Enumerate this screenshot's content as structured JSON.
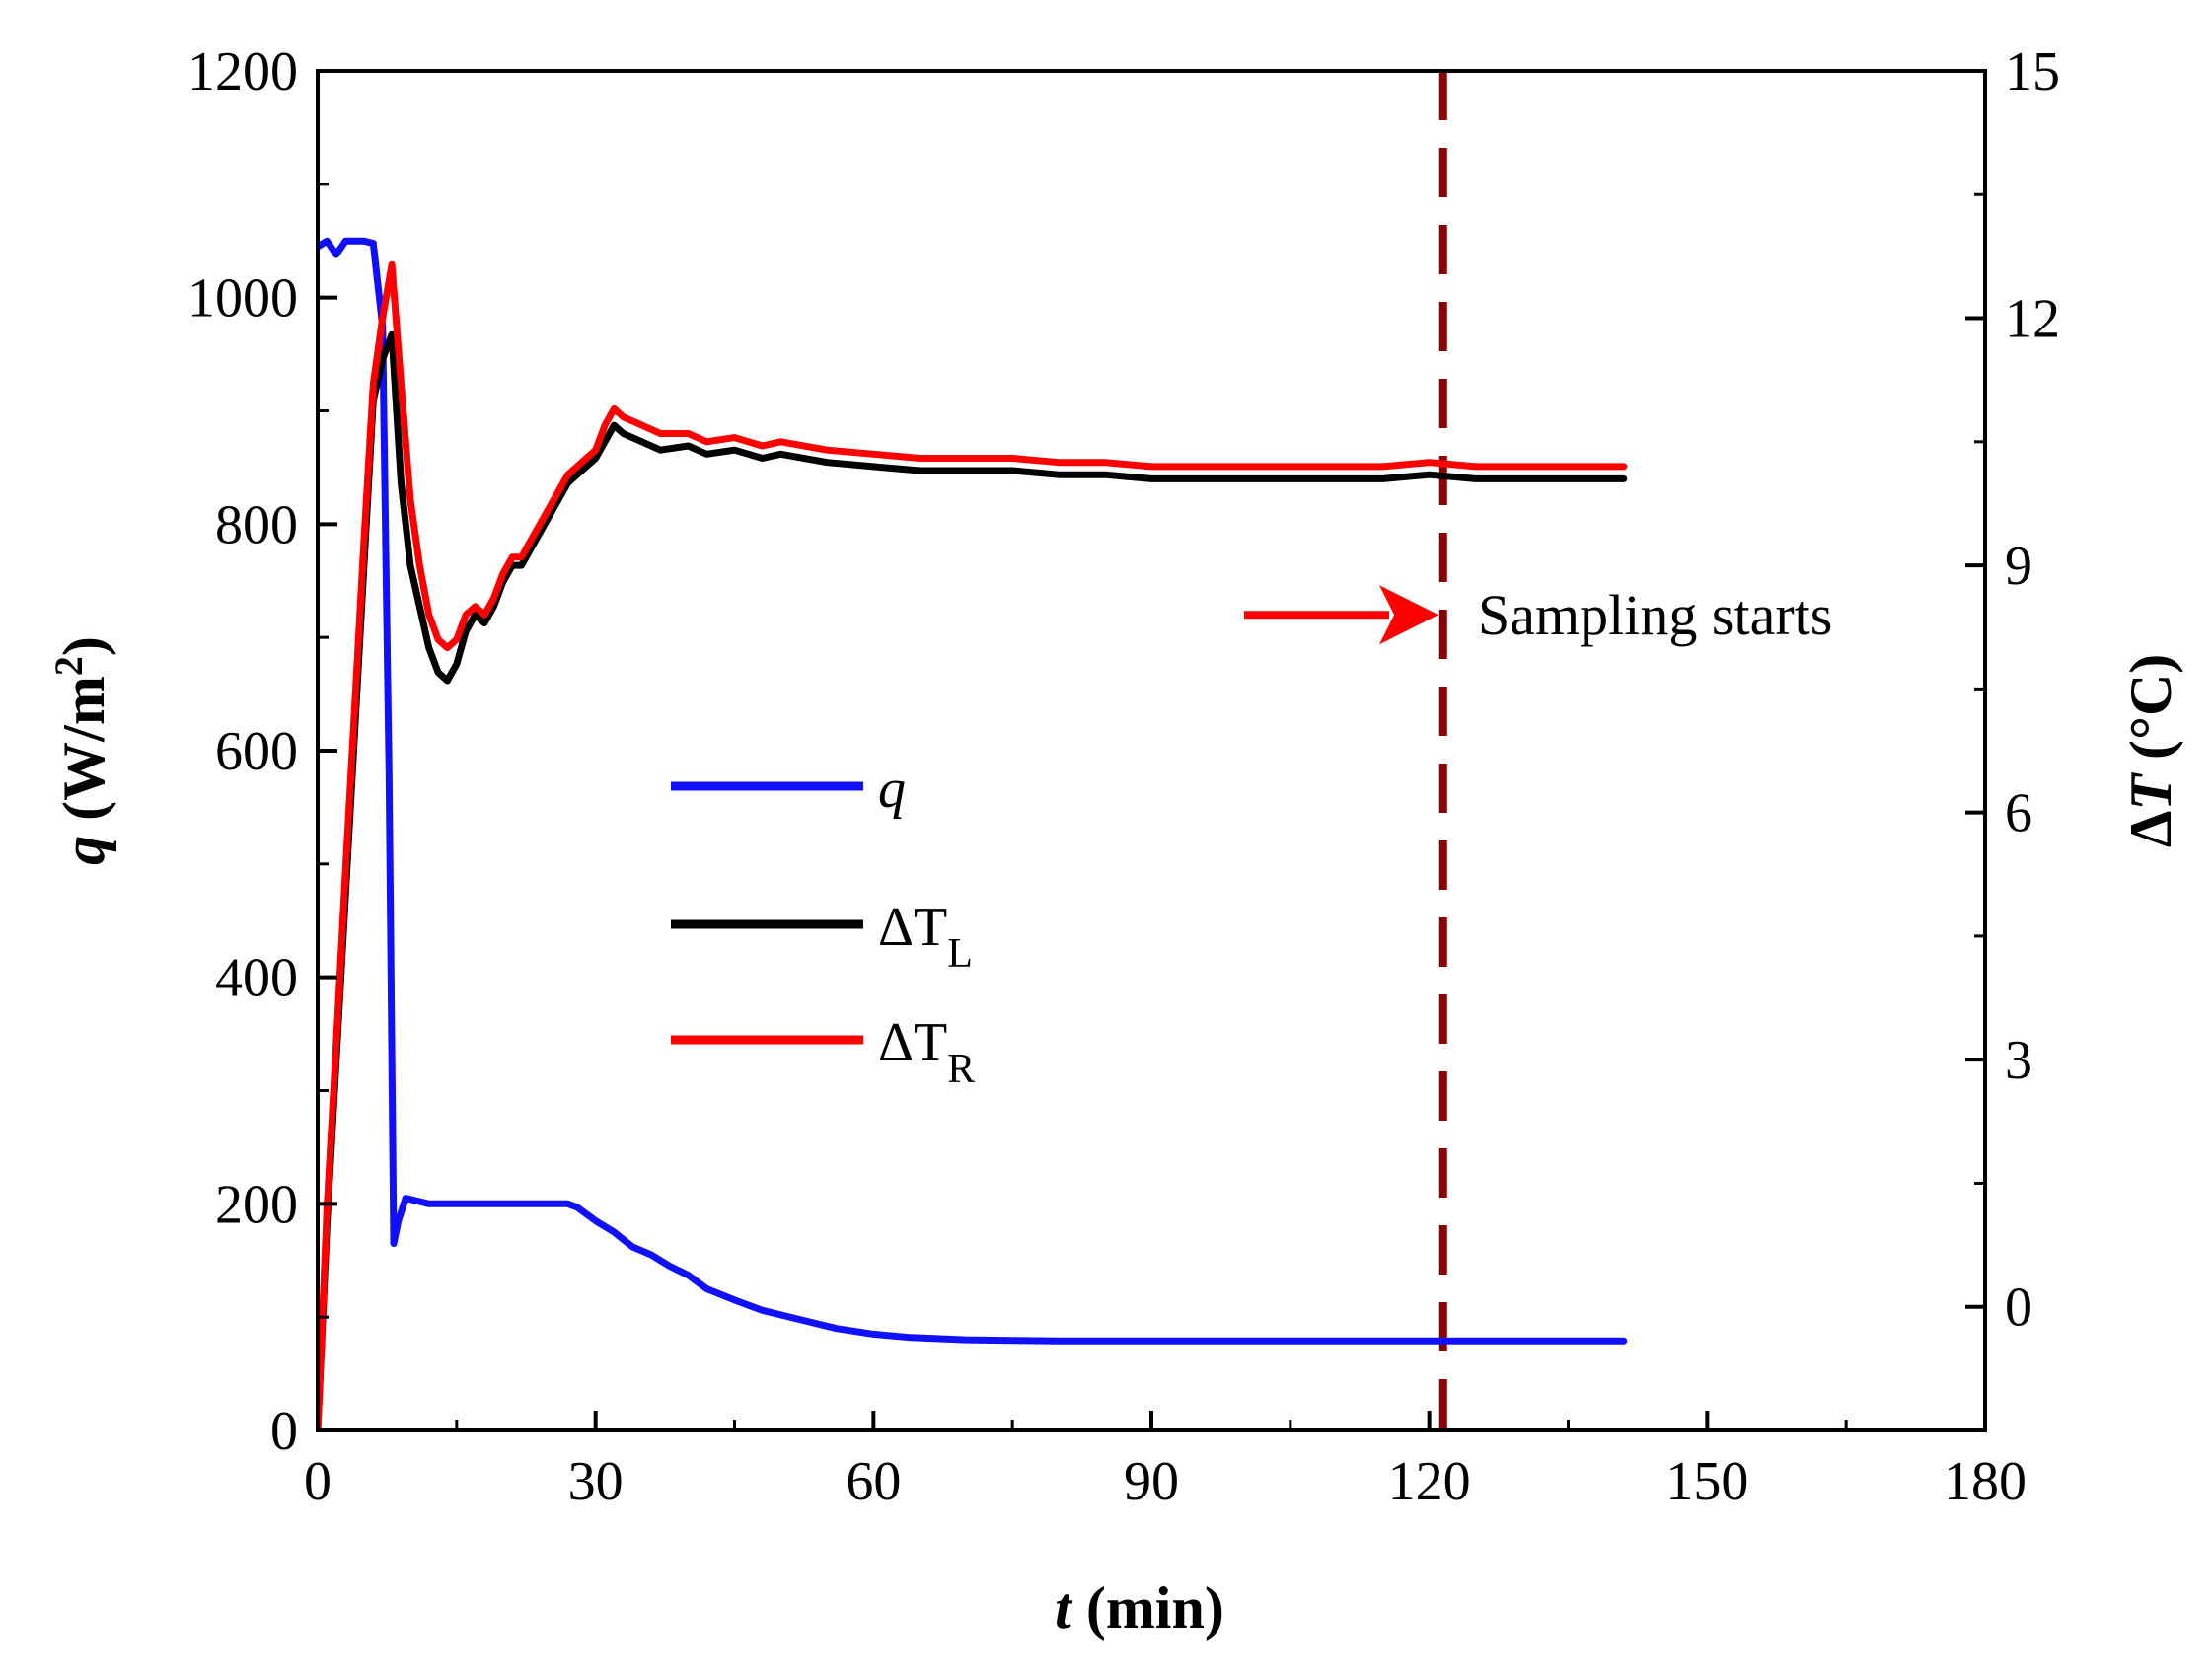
{
  "chart_data": {
    "type": "line",
    "title": "",
    "xlabel": {
      "var": "t",
      "unit": " (min)"
    },
    "ylabel_left": {
      "var": "q",
      "unit_pre": " (W/m",
      "unit_sup": "2",
      "unit_post": ")"
    },
    "ylabel_right": {
      "delta": "Δ",
      "var": "T",
      "unit": " (°C)"
    },
    "xlim": [
      0,
      180
    ],
    "ylim_left": [
      0,
      1200
    ],
    "ylim_right": [
      -1.5,
      15
    ],
    "x_ticks": [
      0,
      30,
      60,
      90,
      120,
      150,
      180
    ],
    "x_tick_labels": [
      "0",
      "30",
      "60",
      "90",
      "120",
      "150",
      "180"
    ],
    "y_left_ticks": [
      0,
      200,
      400,
      600,
      800,
      1000,
      1200
    ],
    "y_left_tick_labels": [
      "0",
      "200",
      "400",
      "600",
      "800",
      "1000",
      "1200"
    ],
    "y_right_ticks": [
      0,
      3,
      6,
      9,
      12,
      15
    ],
    "y_right_tick_labels": [
      "0",
      "3",
      "6",
      "9",
      "12",
      "15"
    ],
    "series": [
      {
        "name": "q",
        "axis": "left",
        "color": "#1010ff",
        "legend": {
          "base": "q",
          "sub": "",
          "italic_all": true
        },
        "points": [
          [
            0,
            1045
          ],
          [
            1,
            1050
          ],
          [
            2,
            1038
          ],
          [
            3,
            1050
          ],
          [
            4,
            1050
          ],
          [
            5,
            1050
          ],
          [
            6,
            1048
          ],
          [
            7,
            975
          ],
          [
            7.7,
            580
          ],
          [
            8.2,
            165
          ],
          [
            8.7,
            185
          ],
          [
            9.5,
            205
          ],
          [
            10.5,
            203
          ],
          [
            12,
            200
          ],
          [
            15,
            200
          ],
          [
            20,
            200
          ],
          [
            24,
            200
          ],
          [
            27,
            200
          ],
          [
            28,
            197
          ],
          [
            30,
            185
          ],
          [
            32,
            175
          ],
          [
            34,
            162
          ],
          [
            36,
            155
          ],
          [
            38,
            145
          ],
          [
            40,
            137
          ],
          [
            42,
            125
          ],
          [
            45,
            115
          ],
          [
            48,
            106
          ],
          [
            52,
            98
          ],
          [
            56,
            90
          ],
          [
            60,
            85
          ],
          [
            64,
            82
          ],
          [
            70,
            80
          ],
          [
            80,
            79
          ],
          [
            90,
            79
          ],
          [
            100,
            79
          ],
          [
            110,
            79
          ],
          [
            120,
            79
          ],
          [
            130,
            79
          ],
          [
            141,
            79
          ]
        ]
      },
      {
        "name": "ΔTL",
        "axis": "right",
        "color": "#000000",
        "legend": {
          "base": "ΔT",
          "sub": "L"
        },
        "points": [
          [
            0,
            -1.5
          ],
          [
            1,
            1
          ],
          [
            2,
            3
          ],
          [
            3,
            5
          ],
          [
            4,
            7
          ],
          [
            5,
            9
          ],
          [
            6,
            11
          ],
          [
            7,
            11.5
          ],
          [
            8,
            11.8
          ],
          [
            9,
            10
          ],
          [
            10,
            9
          ],
          [
            11,
            8.5
          ],
          [
            12,
            8
          ],
          [
            13,
            7.7
          ],
          [
            14,
            7.6
          ],
          [
            15,
            7.8
          ],
          [
            16,
            8.2
          ],
          [
            17,
            8.4
          ],
          [
            18,
            8.3
          ],
          [
            19,
            8.5
          ],
          [
            20,
            8.8
          ],
          [
            21,
            9
          ],
          [
            22,
            9
          ],
          [
            23,
            9.2
          ],
          [
            24,
            9.4
          ],
          [
            25,
            9.6
          ],
          [
            26,
            9.8
          ],
          [
            27,
            10
          ],
          [
            28,
            10.1
          ],
          [
            29,
            10.2
          ],
          [
            30,
            10.3
          ],
          [
            31,
            10.5
          ],
          [
            32,
            10.7
          ],
          [
            33,
            10.6
          ],
          [
            35,
            10.5
          ],
          [
            37,
            10.4
          ],
          [
            40,
            10.45
          ],
          [
            42,
            10.35
          ],
          [
            45,
            10.4
          ],
          [
            48,
            10.3
          ],
          [
            50,
            10.35
          ],
          [
            55,
            10.25
          ],
          [
            60,
            10.2
          ],
          [
            65,
            10.15
          ],
          [
            70,
            10.15
          ],
          [
            75,
            10.15
          ],
          [
            80,
            10.1
          ],
          [
            85,
            10.1
          ],
          [
            90,
            10.05
          ],
          [
            95,
            10.05
          ],
          [
            100,
            10.05
          ],
          [
            105,
            10.05
          ],
          [
            110,
            10.05
          ],
          [
            115,
            10.05
          ],
          [
            120,
            10.1
          ],
          [
            125,
            10.05
          ],
          [
            130,
            10.05
          ],
          [
            135,
            10.05
          ],
          [
            141,
            10.05
          ]
        ]
      },
      {
        "name": "ΔTR",
        "axis": "right",
        "color": "#ff0000",
        "legend": {
          "base": "ΔT",
          "sub": "R"
        },
        "points": [
          [
            0,
            -1.5
          ],
          [
            1,
            1.2
          ],
          [
            2,
            3.2
          ],
          [
            3,
            5.3
          ],
          [
            4,
            7.3
          ],
          [
            5,
            9.3
          ],
          [
            6,
            11.2
          ],
          [
            7,
            12
          ],
          [
            8,
            12.65
          ],
          [
            9,
            11.2
          ],
          [
            10,
            9.8
          ],
          [
            11,
            9
          ],
          [
            12,
            8.4
          ],
          [
            13,
            8.1
          ],
          [
            14,
            8
          ],
          [
            15,
            8.1
          ],
          [
            16,
            8.4
          ],
          [
            17,
            8.5
          ],
          [
            18,
            8.4
          ],
          [
            19,
            8.6
          ],
          [
            20,
            8.9
          ],
          [
            21,
            9.1
          ],
          [
            22,
            9.1
          ],
          [
            23,
            9.3
          ],
          [
            24,
            9.5
          ],
          [
            25,
            9.7
          ],
          [
            26,
            9.9
          ],
          [
            27,
            10.1
          ],
          [
            28,
            10.2
          ],
          [
            29,
            10.3
          ],
          [
            30,
            10.4
          ],
          [
            31,
            10.7
          ],
          [
            32,
            10.9
          ],
          [
            33,
            10.8
          ],
          [
            35,
            10.7
          ],
          [
            37,
            10.6
          ],
          [
            40,
            10.6
          ],
          [
            42,
            10.5
          ],
          [
            45,
            10.55
          ],
          [
            48,
            10.45
          ],
          [
            50,
            10.5
          ],
          [
            55,
            10.4
          ],
          [
            60,
            10.35
          ],
          [
            65,
            10.3
          ],
          [
            70,
            10.3
          ],
          [
            75,
            10.3
          ],
          [
            80,
            10.25
          ],
          [
            85,
            10.25
          ],
          [
            90,
            10.2
          ],
          [
            95,
            10.2
          ],
          [
            100,
            10.2
          ],
          [
            105,
            10.2
          ],
          [
            110,
            10.2
          ],
          [
            115,
            10.2
          ],
          [
            120,
            10.25
          ],
          [
            125,
            10.2
          ],
          [
            130,
            10.2
          ],
          [
            135,
            10.2
          ],
          [
            141,
            10.2
          ]
        ]
      }
    ],
    "vline": {
      "x": 121.5,
      "color": "#8b0000",
      "style": "dashed"
    },
    "annotation": {
      "text": "Sampling starts",
      "arrow_color": "#ff0000",
      "arrow_from_x": 100,
      "arrow_to_x": 121,
      "y_right": 8.4
    }
  }
}
